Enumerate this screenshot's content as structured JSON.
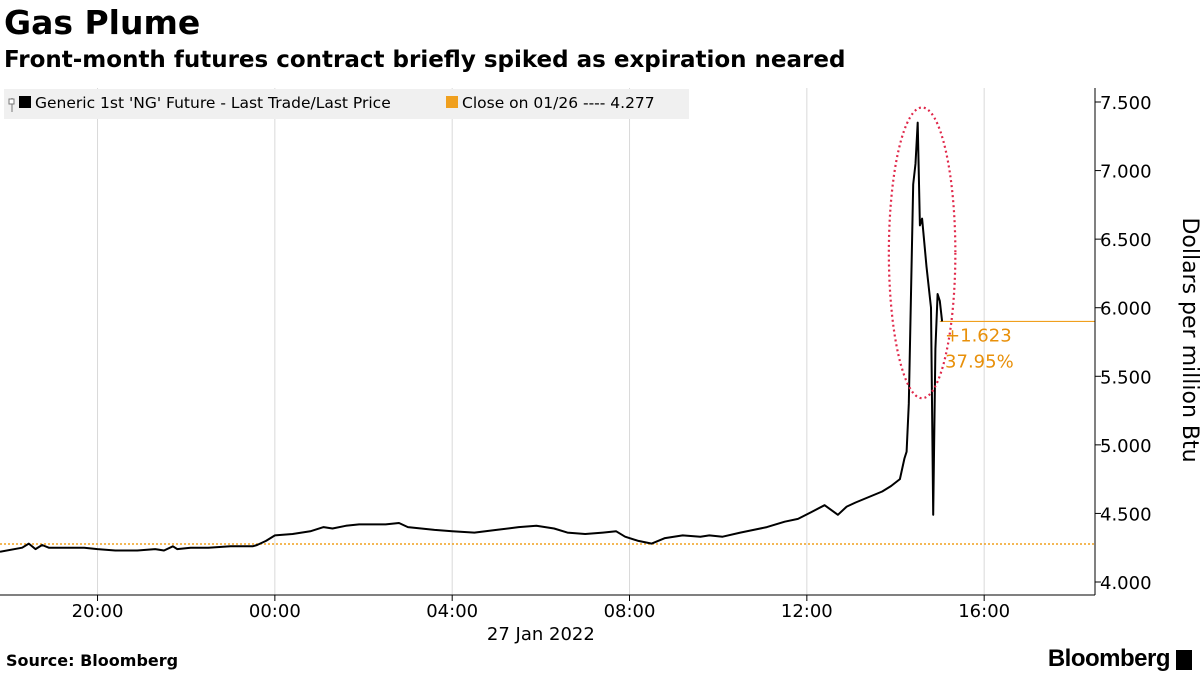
{
  "header": {
    "title": "Gas Plume",
    "subtitle": "Front-month futures contract briefly spiked as expiration neared"
  },
  "footer": {
    "source": "Source: Bloomberg",
    "brand": "Bloomberg"
  },
  "colors": {
    "series": "#000000",
    "reference": "#f0a01e",
    "annotation": "#e8900a",
    "grid": "#d9d9d9",
    "legend_bg": "#f0f0f0",
    "highlight_ellipse": "#e0284a"
  },
  "chart_data": {
    "type": "line",
    "title": "Gas Plume",
    "subtitle": "Front-month futures contract briefly spiked as expiration neared",
    "ylabel": "Dollars per million Btu",
    "y_axis_side": "right",
    "ylim": [
      4.0,
      7.5
    ],
    "yticks": [
      "4.000",
      "4.500",
      "5.000",
      "5.500",
      "6.000",
      "6.500",
      "7.000",
      "7.500"
    ],
    "yticks_values": [
      4.0,
      4.5,
      5.0,
      5.5,
      6.0,
      6.5,
      7.0,
      7.5
    ],
    "xticks": [
      "20:00",
      "00:00",
      "04:00",
      "08:00",
      "12:00",
      "16:00"
    ],
    "xticks_hours": [
      20,
      24,
      28,
      32,
      36,
      40
    ],
    "x_date_label": "27 Jan 2022",
    "x_range_hours": [
      17.8,
      42.5
    ],
    "grid": "vertical",
    "legend": {
      "placement": "top-left",
      "entries": [
        {
          "label": "Generic 1st 'NG' Future - Last Trade/Last Price",
          "color": "#000000"
        },
        {
          "label": "Close on 01/26 ---- 4.277",
          "color": "#f0a01e"
        }
      ]
    },
    "reference_line": {
      "name": "Close on 01/26",
      "value": 4.277
    },
    "last_value_line": 5.9,
    "annotation": {
      "lines": [
        "+1.623",
        "37.95%"
      ]
    },
    "highlight": {
      "shape": "ellipse",
      "center_hour": 38.6,
      "center_value": 6.4,
      "hours_radius": 0.75,
      "value_radius": 1.06
    },
    "series": [
      {
        "name": "Generic 1st 'NG' Future - Last Trade/Last Price",
        "x": [
          17.8,
          18.3,
          18.45,
          18.6,
          18.75,
          18.9,
          19.3,
          19.7,
          20.0,
          20.4,
          20.9,
          21.3,
          21.5,
          21.7,
          21.8,
          22.1,
          22.5,
          23.0,
          23.5,
          23.6,
          23.8,
          24.0,
          24.4,
          24.8,
          25.1,
          25.3,
          25.6,
          25.9,
          26.2,
          26.5,
          26.8,
          27.0,
          27.3,
          27.6,
          28.0,
          28.5,
          29.0,
          29.5,
          29.9,
          30.3,
          30.6,
          31.0,
          31.4,
          31.7,
          31.9,
          32.2,
          32.5,
          32.8,
          33.2,
          33.6,
          33.8,
          34.1,
          34.5,
          34.8,
          35.1,
          35.5,
          35.8,
          36.1,
          36.4,
          36.7,
          36.9,
          37.1,
          37.4,
          37.7,
          37.9,
          38.1,
          38.2,
          38.25,
          38.3,
          38.35,
          38.4,
          38.45,
          38.5,
          38.55,
          38.6,
          38.7,
          38.8,
          38.85,
          38.9,
          38.95,
          39.0,
          39.05
        ],
        "values": [
          4.22,
          4.25,
          4.28,
          4.24,
          4.27,
          4.25,
          4.25,
          4.25,
          4.24,
          4.23,
          4.23,
          4.24,
          4.23,
          4.26,
          4.24,
          4.25,
          4.25,
          4.26,
          4.26,
          4.27,
          4.3,
          4.34,
          4.35,
          4.37,
          4.4,
          4.39,
          4.41,
          4.42,
          4.42,
          4.42,
          4.43,
          4.4,
          4.39,
          4.38,
          4.37,
          4.36,
          4.38,
          4.4,
          4.41,
          4.39,
          4.36,
          4.35,
          4.36,
          4.37,
          4.33,
          4.3,
          4.28,
          4.32,
          4.34,
          4.33,
          4.34,
          4.33,
          4.36,
          4.38,
          4.4,
          4.44,
          4.46,
          4.51,
          4.56,
          4.49,
          4.55,
          4.58,
          4.62,
          4.66,
          4.7,
          4.75,
          4.9,
          4.95,
          5.3,
          6.1,
          6.9,
          7.05,
          7.35,
          6.6,
          6.65,
          6.3,
          6.0,
          4.49,
          5.7,
          6.1,
          6.05,
          5.9
        ]
      }
    ]
  }
}
